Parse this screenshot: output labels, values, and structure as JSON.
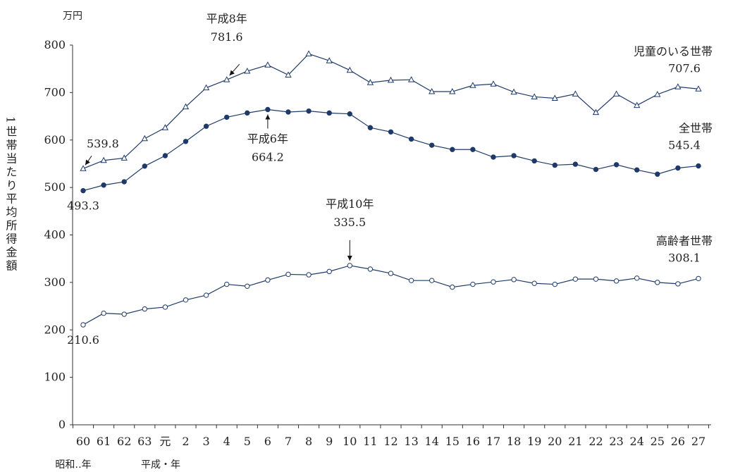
{
  "chart_data": {
    "type": "line",
    "y_unit": "万円",
    "ylabel": "1世帯当たり平均所得金額",
    "ylim": [
      0,
      800
    ],
    "yticks": [
      0,
      100,
      200,
      300,
      400,
      500,
      600,
      700,
      800
    ],
    "x_era_labels": {
      "showa": "昭和‥年",
      "heisei": "平成・年"
    },
    "categories": [
      "60",
      "61",
      "62",
      "63",
      "元",
      "2",
      "3",
      "4",
      "5",
      "6",
      "7",
      "8",
      "9",
      "10",
      "11",
      "12",
      "13",
      "14",
      "15",
      "16",
      "17",
      "18",
      "19",
      "20",
      "21",
      "22",
      "23",
      "24",
      "25",
      "26",
      "27"
    ],
    "grid": false,
    "series": [
      {
        "name": "児童のいる世帯",
        "marker": "triangle",
        "values": [
          539.8,
          557,
          562,
          603,
          626,
          670,
          710,
          727,
          745,
          758,
          737,
          781.6,
          767,
          747,
          721,
          726,
          727,
          702,
          702,
          715,
          718,
          701,
          691,
          688,
          697,
          658,
          697,
          673,
          696,
          712,
          707.6
        ]
      },
      {
        "name": "全世帯",
        "marker": "filled-circle",
        "values": [
          493.3,
          505,
          512,
          545,
          567,
          597,
          629,
          648,
          657,
          664.2,
          659,
          661,
          657,
          655,
          626,
          617,
          602,
          589,
          580,
          580,
          564,
          567,
          556,
          547,
          549,
          538,
          548,
          537,
          528,
          541,
          545.4
        ]
      },
      {
        "name": "高齢者世帯",
        "marker": "open-circle",
        "values": [
          210.6,
          235,
          233,
          244,
          248,
          263,
          273,
          296,
          292,
          305,
          317,
          316,
          323,
          335.5,
          328,
          319,
          304,
          304,
          290,
          296,
          301,
          306,
          298,
          296,
          307,
          307,
          303,
          309,
          300,
          297,
          308.1
        ]
      }
    ],
    "annotations": [
      {
        "series": 0,
        "index": 0,
        "lines": [
          "539.8"
        ]
      },
      {
        "series": 0,
        "index": 7,
        "lines": [
          "平成8年",
          "781.6"
        ]
      },
      {
        "series": 0,
        "index": 30,
        "lines": [
          "707.6"
        ]
      },
      {
        "series": 1,
        "index": 0,
        "lines": [
          "493.3"
        ]
      },
      {
        "series": 1,
        "index": 9,
        "lines": [
          "平成6年",
          "664.2"
        ]
      },
      {
        "series": 1,
        "index": 30,
        "lines": [
          "545.4"
        ]
      },
      {
        "series": 2,
        "index": 0,
        "lines": [
          "210.6"
        ]
      },
      {
        "series": 2,
        "index": 13,
        "lines": [
          "平成10年",
          "335.5"
        ]
      },
      {
        "series": 2,
        "index": 30,
        "lines": [
          "308.1"
        ]
      }
    ]
  }
}
